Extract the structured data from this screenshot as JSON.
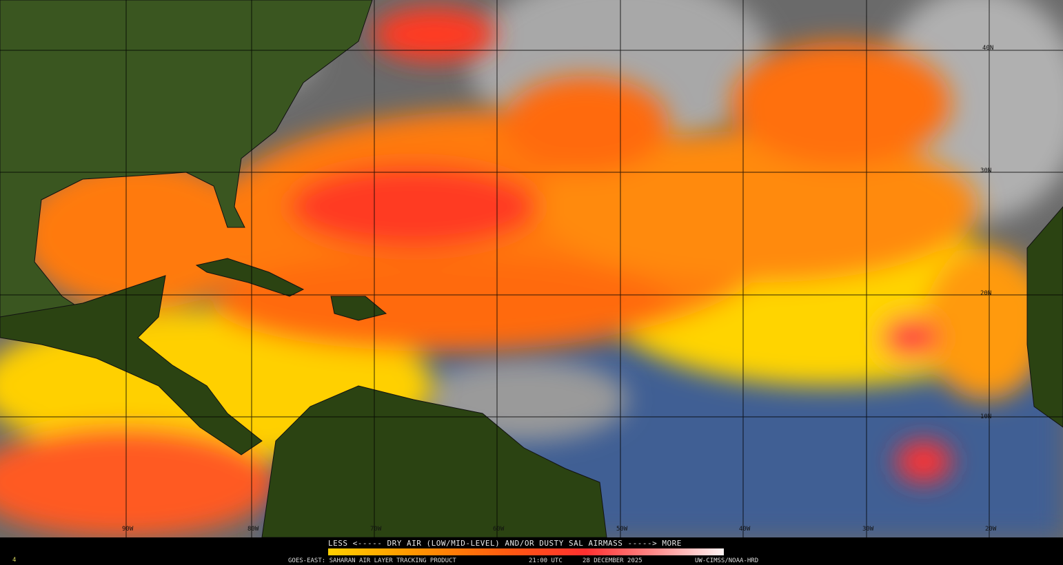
{
  "legend": {
    "title": "LESS <----- DRY AIR (LOW/MID-LEVEL) AND/OR DUSTY SAL AIRMASS -----> MORE",
    "colors": [
      "#ffd000",
      "#ff9a00",
      "#ff5a10",
      "#ff3030",
      "#ff8888",
      "#fff4f4"
    ]
  },
  "caption": {
    "product": "GOES-EAST: SAHARAN AIR LAYER TRACKING PRODUCT",
    "time": "21:00 UTC",
    "date": "28 DECEMBER 2025",
    "credit": "UW-CIMSS/NOAA-HRD",
    "frame": "4"
  },
  "grid": {
    "longitudes": [
      "90W",
      "80W",
      "70W",
      "60W",
      "50W",
      "40W",
      "30W",
      "20W"
    ],
    "latitudes": [
      "40N",
      "30N",
      "20N",
      "10N"
    ]
  },
  "colors": {
    "ocean_moist": "#3f5f94",
    "land": "#2b4312",
    "cloud": "#9a9a9a",
    "sal_low": "#ffd000",
    "sal_mid": "#ff6a10",
    "sal_high": "#ff3030"
  }
}
